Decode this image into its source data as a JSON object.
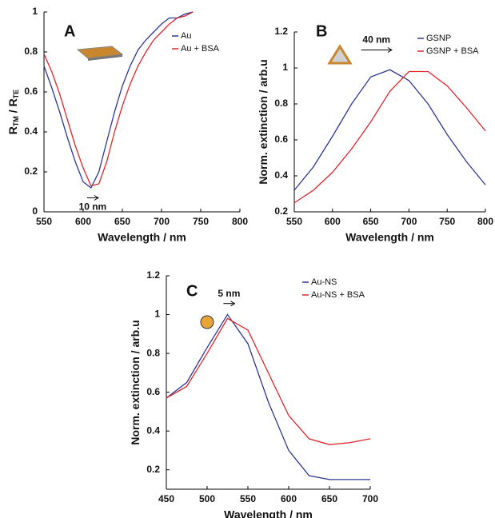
{
  "chart_data": [
    {
      "type": "line",
      "panel_label": "A",
      "shift_label": "10 nm",
      "x_label": "Wavelength / nm",
      "y_label_parts": [
        "R",
        "TM",
        " / R",
        "TE"
      ],
      "x": [
        550,
        560,
        570,
        580,
        590,
        600,
        610,
        620,
        630,
        640,
        650,
        660,
        670,
        680,
        690,
        700,
        710,
        720,
        730,
        740
      ],
      "series": [
        {
          "name": "Au",
          "color": "#2b3990",
          "values": [
            0.73,
            0.62,
            0.5,
            0.37,
            0.25,
            0.15,
            0.12,
            0.2,
            0.35,
            0.5,
            0.63,
            0.73,
            0.81,
            0.86,
            0.9,
            0.94,
            0.97,
            0.97,
            0.99,
            1.0
          ]
        },
        {
          "name": "Au + BSA",
          "color": "#e0262b",
          "values": [
            0.79,
            0.7,
            0.59,
            0.46,
            0.33,
            0.22,
            0.13,
            0.14,
            0.25,
            0.4,
            0.53,
            0.64,
            0.73,
            0.8,
            0.86,
            0.9,
            0.94,
            0.97,
            0.98,
            1.0
          ]
        }
      ],
      "xlim": [
        550,
        800
      ],
      "xticks": [
        550,
        600,
        650,
        700,
        750,
        800
      ],
      "ylim": [
        0,
        1
      ],
      "yticks": [
        0,
        0.2,
        0.4,
        0.6,
        0.8,
        1
      ],
      "legend": "top right"
    },
    {
      "type": "line",
      "panel_label": "B",
      "shift_label": "40 nm",
      "x_label": "Wavelength / nm",
      "y_label_parts": [
        "Norm. extinction / arb.u"
      ],
      "x": [
        550,
        575,
        600,
        625,
        650,
        675,
        700,
        725,
        750,
        775,
        800
      ],
      "series": [
        {
          "name": "GSNP",
          "color": "#2b3990",
          "values": [
            0.32,
            0.45,
            0.62,
            0.8,
            0.95,
            0.99,
            0.93,
            0.8,
            0.63,
            0.48,
            0.35
          ]
        },
        {
          "name": "GSNP + BSA",
          "color": "#e0262b",
          "values": [
            0.25,
            0.32,
            0.42,
            0.55,
            0.7,
            0.87,
            0.98,
            0.98,
            0.9,
            0.78,
            0.65
          ]
        }
      ],
      "xlim": [
        550,
        800
      ],
      "xticks": [
        550,
        600,
        650,
        700,
        750,
        800
      ],
      "ylim": [
        0.2,
        1.2
      ],
      "yticks": [
        0.2,
        0.4,
        0.6,
        0.8,
        1,
        1.2
      ],
      "legend": "top right"
    },
    {
      "type": "line",
      "panel_label": "C",
      "shift_label": "5 nm",
      "x_label": "Wavelength / nm",
      "y_label_parts": [
        "Norm. extinction / arb.u"
      ],
      "x": [
        450,
        475,
        500,
        525,
        550,
        575,
        600,
        625,
        650,
        675,
        700
      ],
      "series": [
        {
          "name": "Au-NS",
          "color": "#2b3990",
          "values": [
            0.57,
            0.65,
            0.83,
            1.0,
            0.85,
            0.55,
            0.3,
            0.17,
            0.15,
            0.15,
            0.15
          ]
        },
        {
          "name": "Au-NS + BSA",
          "color": "#e0262b",
          "values": [
            0.57,
            0.63,
            0.8,
            0.98,
            0.92,
            0.7,
            0.48,
            0.36,
            0.33,
            0.34,
            0.36
          ]
        }
      ],
      "xlim": [
        450,
        700
      ],
      "xticks": [
        450,
        500,
        550,
        600,
        650,
        700
      ],
      "ylim": [
        0.1,
        1.2
      ],
      "yticks": [
        0.2,
        0.4,
        0.6,
        0.8,
        1,
        1.2
      ],
      "legend": "top right"
    }
  ]
}
